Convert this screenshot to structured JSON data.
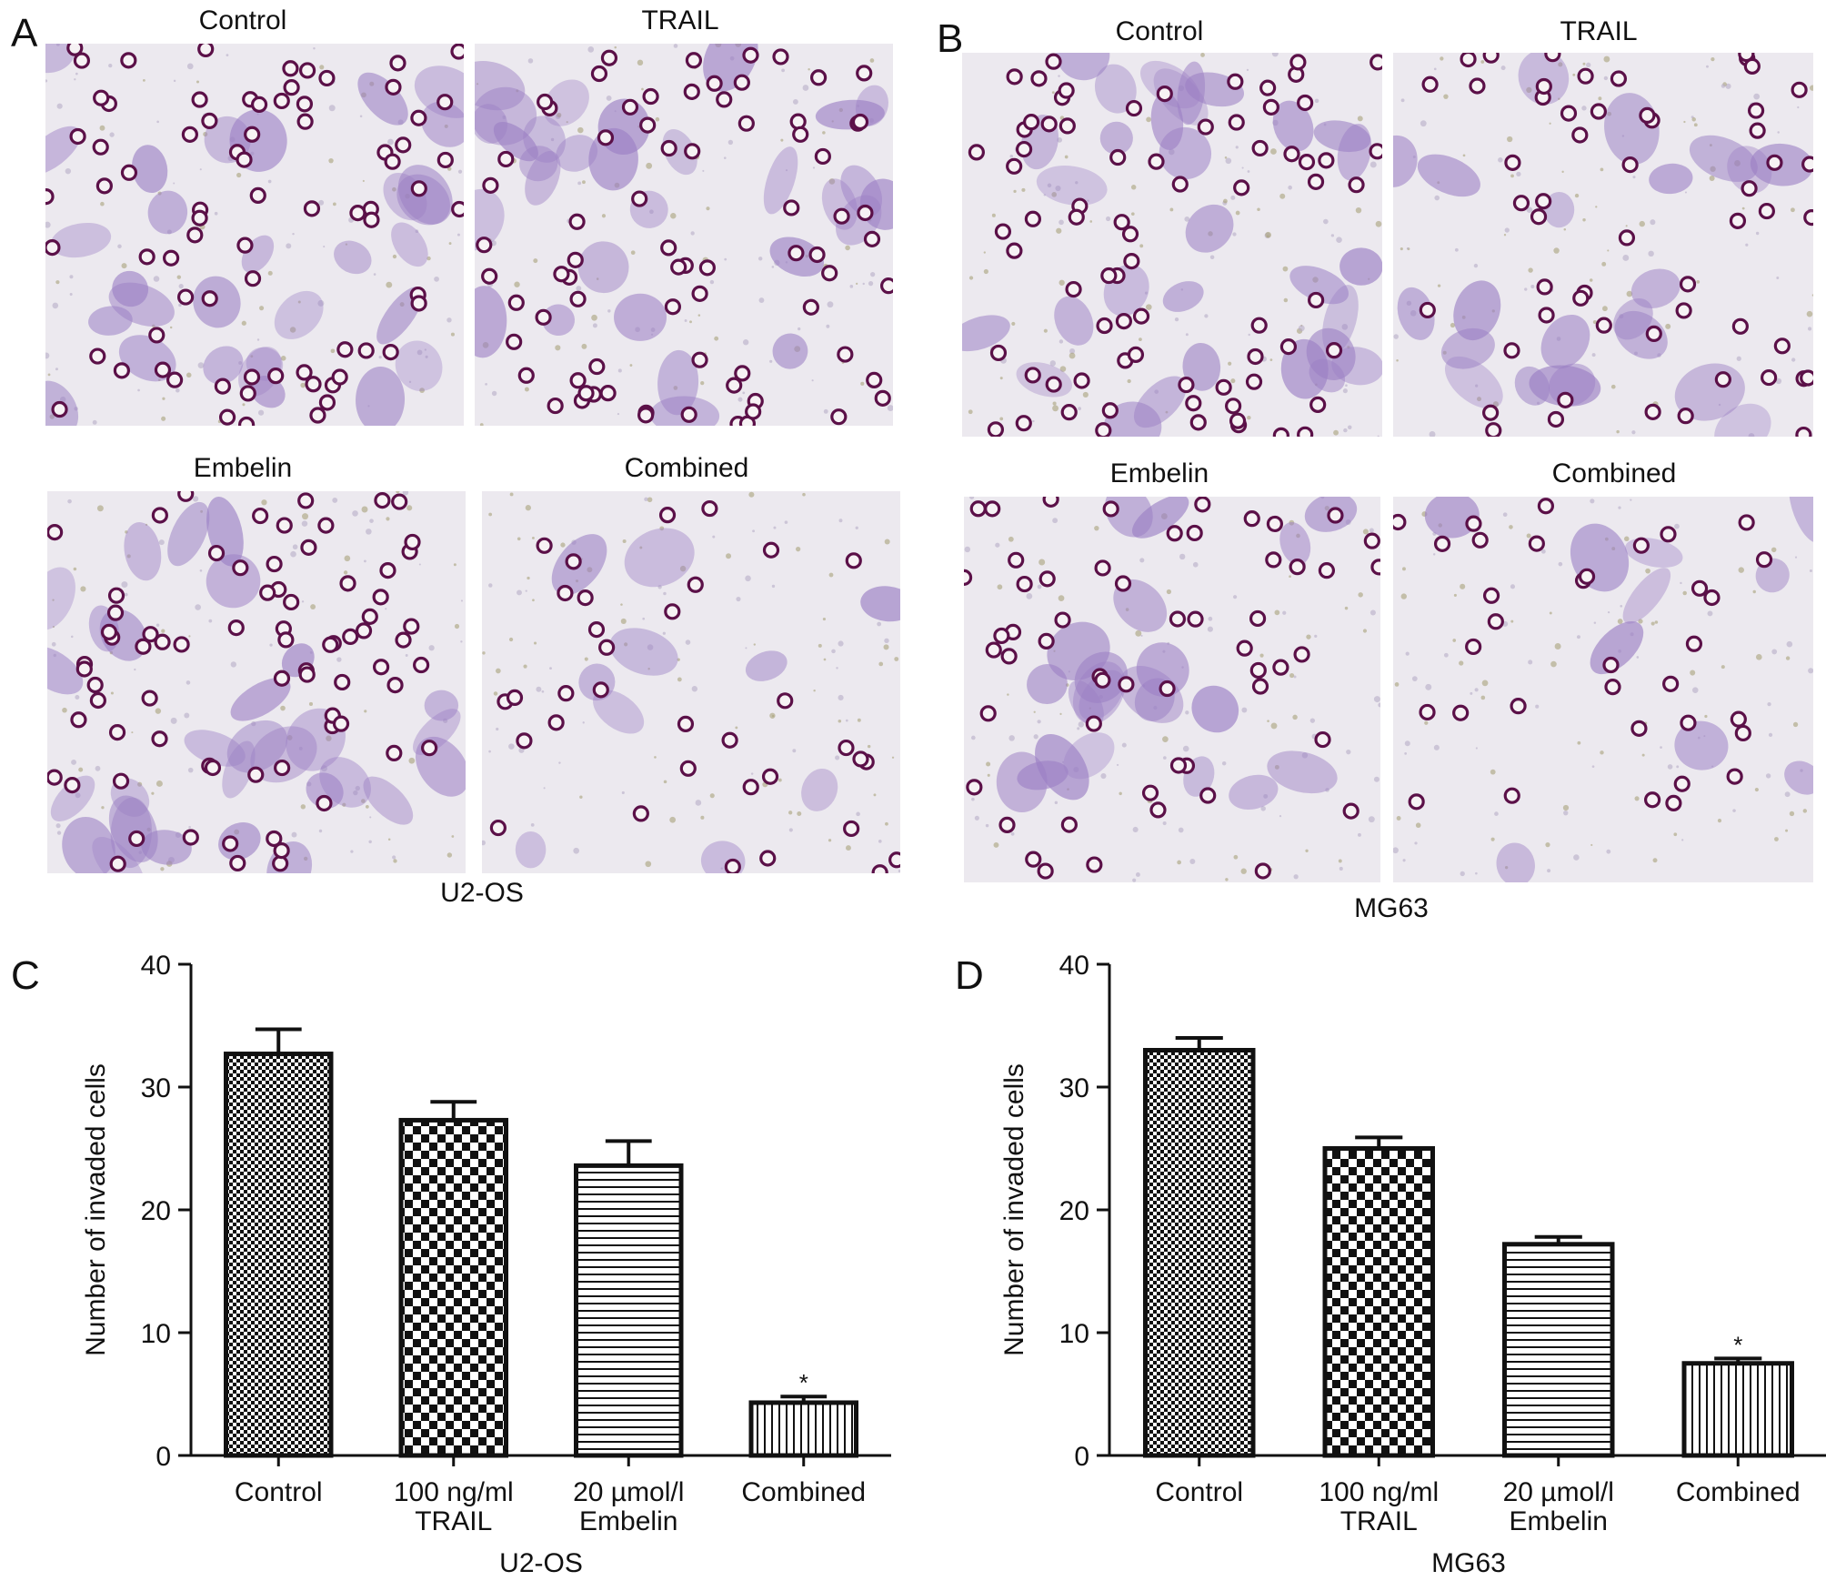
{
  "panels": {
    "A": {
      "letter": "A",
      "cell_line": "U2-OS",
      "images": [
        {
          "title": "Control",
          "density": "high"
        },
        {
          "title": "TRAIL",
          "density": "high"
        },
        {
          "title": "Embelin",
          "density": "high"
        },
        {
          "title": "Combined",
          "density": "low"
        }
      ]
    },
    "B": {
      "letter": "B",
      "cell_line": "MG63",
      "images": [
        {
          "title": "Control",
          "density": "high"
        },
        {
          "title": "TRAIL",
          "density": "medium"
        },
        {
          "title": "Embelin",
          "density": "medium"
        },
        {
          "title": "Combined",
          "density": "low"
        }
      ]
    },
    "C": {
      "letter": "C"
    },
    "D": {
      "letter": "D"
    }
  },
  "colors": {
    "membrane": "#ece9ef",
    "cell_stain": "#9b7fc4",
    "pore_ring": "#5b1048",
    "bar_stroke": "#111111"
  },
  "chart_data": [
    {
      "type": "bar",
      "panel": "C",
      "categories": [
        [
          "Control"
        ],
        [
          "100 ng/ml",
          "TRAIL"
        ],
        [
          "20 µmol/l",
          "Embelin"
        ],
        [
          "Combined"
        ]
      ],
      "values": [
        32.7,
        27.3,
        23.6,
        4.3
      ],
      "errors": [
        2.0,
        1.5,
        2.0,
        0.5
      ],
      "significance": [
        "",
        "",
        "",
        "*"
      ],
      "patterns": [
        "fine-check",
        "check",
        "horizontal",
        "vertical"
      ],
      "xlabel": "U2-OS",
      "ylabel": "Number of invaded cells",
      "ylim": [
        0,
        40
      ],
      "yticks": [
        0,
        10,
        20,
        30,
        40
      ]
    },
    {
      "type": "bar",
      "panel": "D",
      "categories": [
        [
          "Control"
        ],
        [
          "100 ng/ml",
          "TRAIL"
        ],
        [
          "20 µmol/l",
          "Embelin"
        ],
        [
          "Combined"
        ]
      ],
      "values": [
        33.0,
        25.0,
        17.2,
        7.5
      ],
      "errors": [
        1.0,
        0.9,
        0.6,
        0.4
      ],
      "significance": [
        "",
        "",
        "",
        "*"
      ],
      "patterns": [
        "fine-check",
        "check",
        "horizontal",
        "vertical"
      ],
      "xlabel": "MG63",
      "ylabel": "Number of invaded cells",
      "ylim": [
        0,
        40
      ],
      "yticks": [
        0,
        10,
        20,
        30,
        40
      ]
    }
  ]
}
